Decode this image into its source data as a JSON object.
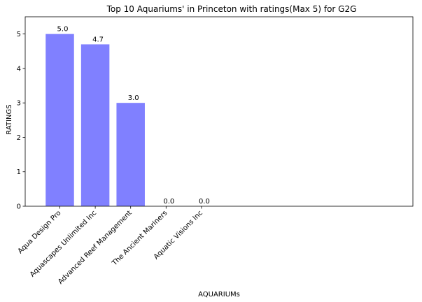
{
  "chart_data": {
    "type": "bar",
    "title": "Top 10 Aquariums' in Princeton with ratings(Max 5) for G2G",
    "xlabel": "AQUARIUMs",
    "ylabel": "RATINGS",
    "categories": [
      "Aqua Design Pro",
      "Aquascapes Unlimited Inc",
      "Advanced Reef Management",
      "The Ancient Mariners",
      "Aquatic Visions Inc"
    ],
    "values": [
      5.0,
      4.7,
      3.0,
      0.0,
      0.0
    ],
    "data_labels": [
      "5.0",
      "4.7",
      "3.0",
      "0.0",
      "0.0"
    ],
    "ylim": [
      0,
      5.5
    ],
    "yticks": [
      0,
      1,
      2,
      3,
      4,
      5
    ],
    "ytick_labels": [
      "0",
      "1",
      "2",
      "3",
      "4",
      "5"
    ],
    "bar_color": "#8080ff",
    "grid": false,
    "legend": "none"
  }
}
